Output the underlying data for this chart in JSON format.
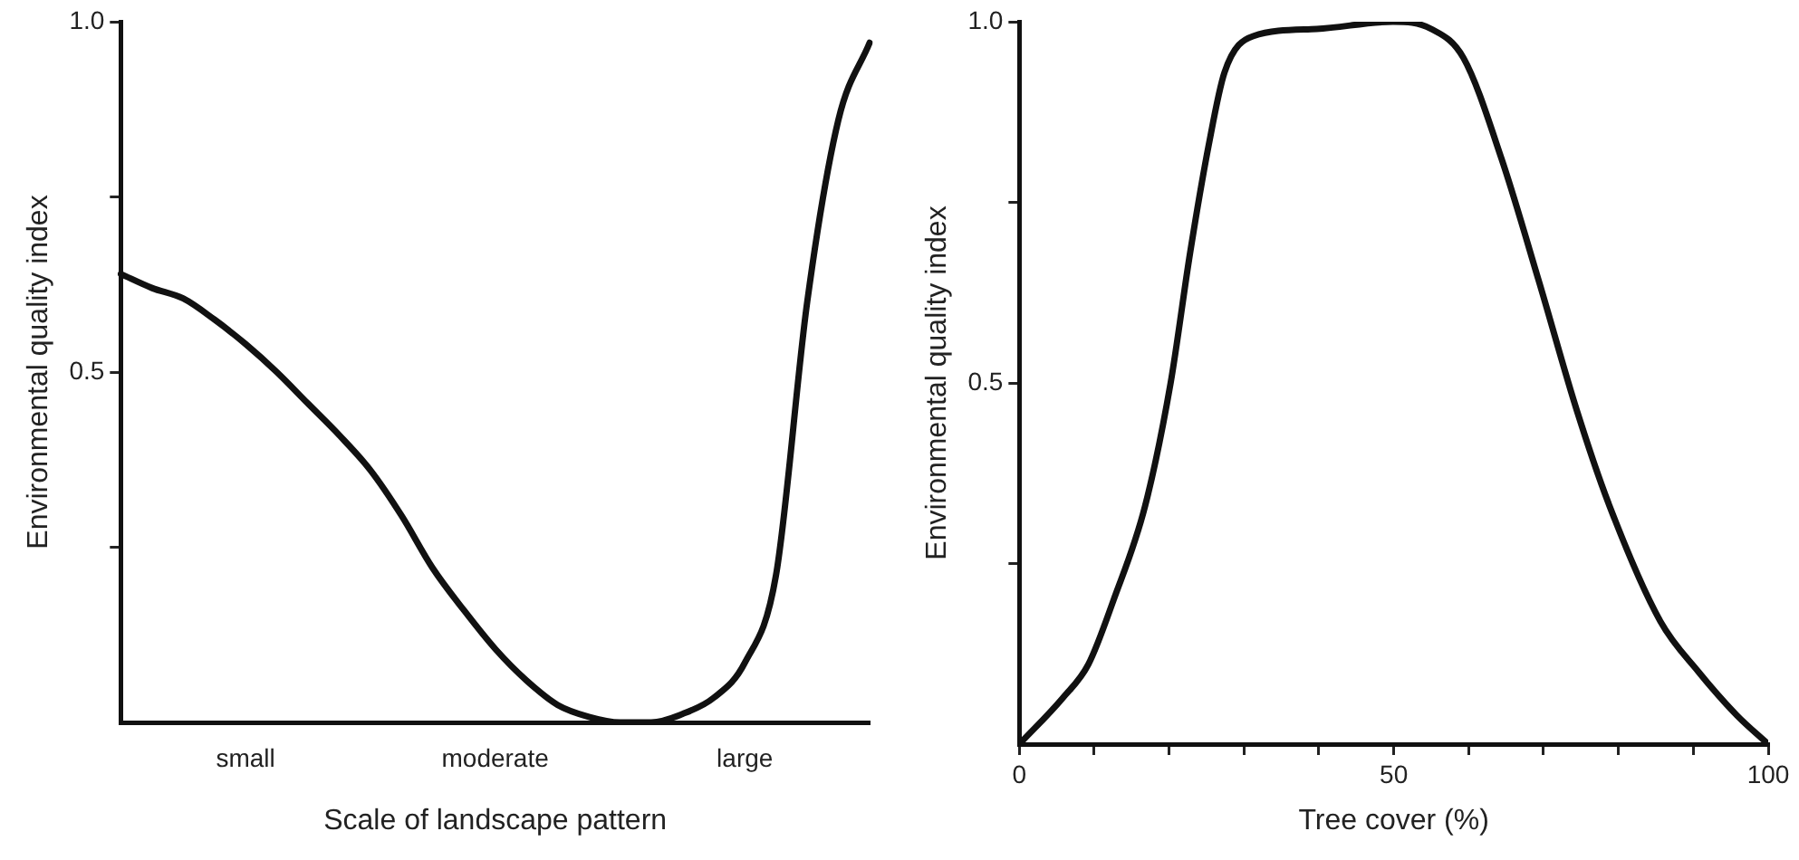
{
  "chart_data": [
    {
      "type": "line",
      "xlabel": "Scale of landscape pattern",
      "ylabel": "Environmental quality index",
      "categories": [
        null,
        null,
        null,
        null,
        "small",
        null,
        null,
        null,
        null,
        null,
        null,
        null,
        "moderate",
        null,
        null,
        null,
        null,
        null,
        null,
        null,
        "large",
        null,
        null,
        null,
        null
      ],
      "ylim": [
        0,
        1
      ],
      "yticks": [
        {
          "value": 0.25,
          "label": null
        },
        0.5,
        {
          "value": 0.75,
          "label": null
        },
        {
          "value": 1,
          "label": "1.0"
        }
      ],
      "grid": false,
      "legend": false,
      "marker": "none",
      "line_style": "solid",
      "series": [
        {
          "color": "#111111",
          "values": [
            0.64,
            0.62,
            0.605,
            0.575,
            0.54,
            0.5,
            0.455,
            0.41,
            0.36,
            0.295,
            0.22,
            0.16,
            0.105,
            0.06,
            0.025,
            0.008,
            0,
            0,
            0.012,
            0.035,
            0.085,
            0.21,
            0.6,
            0.86,
            0.97
          ]
        }
      ]
    },
    {
      "type": "line",
      "xlabel": "Tree cover (%)",
      "ylabel": "Environmental quality index",
      "xlim": [
        0,
        100
      ],
      "xticks": [
        0,
        {
          "value": 10,
          "label": null
        },
        {
          "value": 20,
          "label": null
        },
        {
          "value": 30,
          "label": null
        },
        {
          "value": 40,
          "label": null
        },
        50,
        {
          "value": 60,
          "label": null
        },
        {
          "value": 70,
          "label": null
        },
        {
          "value": 80,
          "label": null
        },
        {
          "value": 90,
          "label": null
        },
        100
      ],
      "ylim": [
        0,
        1
      ],
      "yticks": [
        {
          "value": 0.25,
          "label": null
        },
        0.5,
        {
          "value": 0.75,
          "label": null
        },
        {
          "value": 1,
          "label": "1.0"
        }
      ],
      "grid": false,
      "legend": false,
      "marker": "none",
      "line_style": "solid",
      "series": [
        {
          "color": "#111111",
          "x": [
            0,
            5.8,
            9.2,
            12.6,
            16.8,
            20.2,
            22.8,
            25.3,
            27.4,
            31.2,
            39.7,
            49.9,
            55,
            59.3,
            64.4,
            69.4,
            74.5,
            78.8,
            85.6,
            90.7,
            95.8,
            100
          ],
          "values": [
            0,
            0.064,
            0.11,
            0.2,
            0.33,
            0.5,
            0.68,
            0.83,
            0.93,
            0.98,
            0.99,
            1.0,
            0.99,
            0.95,
            0.81,
            0.64,
            0.46,
            0.33,
            0.17,
            0.1,
            0.04,
            0
          ]
        }
      ]
    }
  ]
}
